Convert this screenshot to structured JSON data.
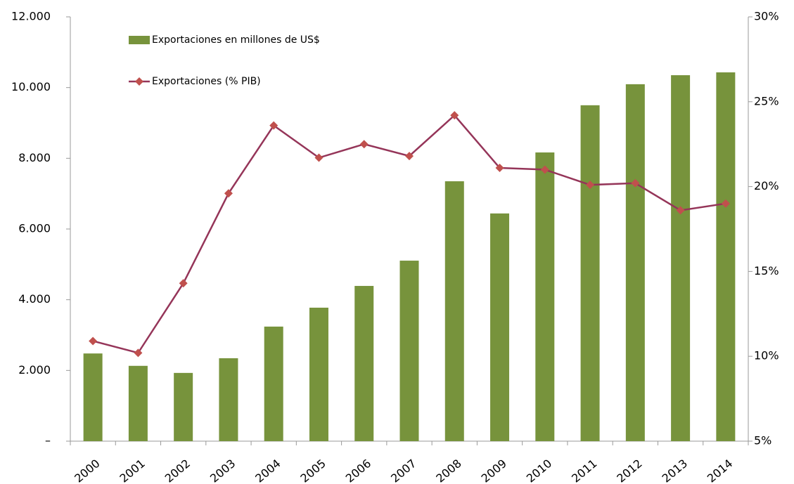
{
  "chart_data": {
    "type": "bar_line",
    "categories": [
      "2000",
      "2001",
      "2002",
      "2003",
      "2004",
      "2005",
      "2006",
      "2007",
      "2008",
      "2009",
      "2010",
      "2011",
      "2012",
      "2013",
      "2014"
    ],
    "series": [
      {
        "name": "Exportaciones en millones de US$",
        "type": "bar",
        "color": "#77933c",
        "values": [
          2480,
          2130,
          1930,
          2345,
          3240,
          3775,
          4390,
          5105,
          7350,
          6440,
          8165,
          9500,
          10095,
          10350,
          10430
        ]
      },
      {
        "name": "Exportaciones (% PIB)",
        "type": "line",
        "axis": "y2",
        "color": "#953559",
        "marker_color": "#c0504d",
        "values": [
          10.9,
          10.2,
          14.3,
          19.6,
          23.6,
          21.7,
          22.5,
          21.8,
          24.2,
          21.1,
          21.0,
          20.1,
          20.2,
          18.6,
          19.0
        ]
      }
    ],
    "ylim": [
      0,
      12000
    ],
    "yticks": [
      {
        "value": 0,
        "label": "–"
      },
      {
        "value": 2000,
        "label": "2.000"
      },
      {
        "value": 4000,
        "label": "4.000"
      },
      {
        "value": 6000,
        "label": "6.000"
      },
      {
        "value": 8000,
        "label": "8.000"
      },
      {
        "value": 10000,
        "label": "10.000"
      },
      {
        "value": 12000,
        "label": "12.000"
      }
    ],
    "y2lim": [
      5,
      30
    ],
    "y2ticks": [
      {
        "value": 5,
        "label": "5%"
      },
      {
        "value": 10,
        "label": "10%"
      },
      {
        "value": 15,
        "label": "15%"
      },
      {
        "value": 20,
        "label": "20%"
      },
      {
        "value": 25,
        "label": "25%"
      },
      {
        "value": 30,
        "label": "30%"
      }
    ],
    "legend": "top-left"
  }
}
